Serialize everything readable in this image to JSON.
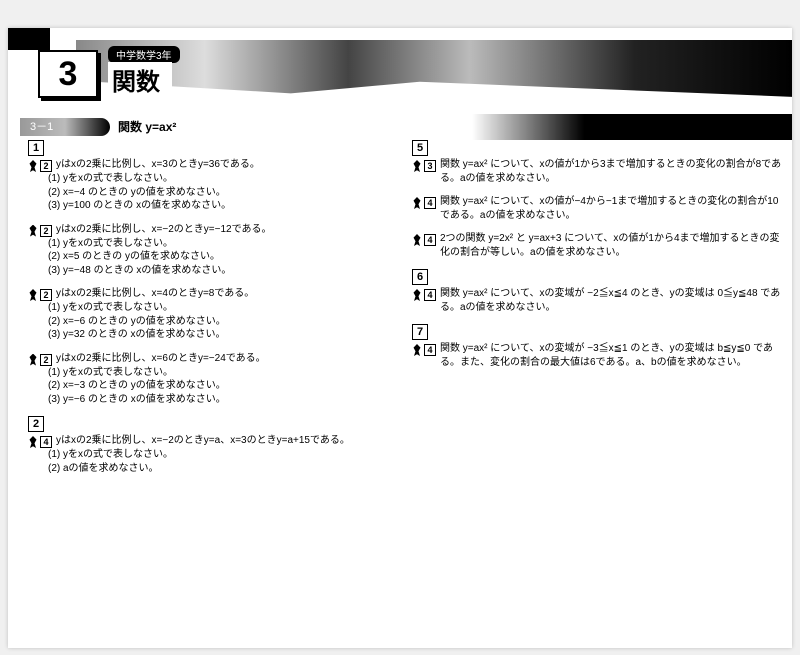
{
  "chapter": {
    "number": "3",
    "breadcrumb": "中学数学3年",
    "title": "関数"
  },
  "section": {
    "tab": "3－1",
    "label": "関数 y=ax²"
  },
  "left_column": [
    {
      "num": "1",
      "difficulty": "2",
      "prompt": "yはxの2乗に比例し、x=3のときy=36である。",
      "sub": [
        "(1) yをxの式で表しなさい。",
        "(2) x=−4 のときの yの値を求めなさい。",
        "(3) y=100 のときの xの値を求めなさい。"
      ]
    },
    {
      "num": "",
      "difficulty": "2",
      "prompt": "yはxの2乗に比例し、x=−2のときy=−12である。",
      "sub": [
        "(1) yをxの式で表しなさい。",
        "(2) x=5 のときの yの値を求めなさい。",
        "(3) y=−48 のときの xの値を求めなさい。"
      ]
    },
    {
      "num": "",
      "difficulty": "2",
      "prompt": "yはxの2乗に比例し、x=4のときy=8である。",
      "sub": [
        "(1) yをxの式で表しなさい。",
        "(2) x=−6 のときの yの値を求めなさい。",
        "(3) y=32 のときの xの値を求めなさい。"
      ]
    },
    {
      "num": "",
      "difficulty": "2",
      "prompt": "yはxの2乗に比例し、x=6のときy=−24である。",
      "sub": [
        "(1) yをxの式で表しなさい。",
        "(2) x=−3 のときの yの値を求めなさい。",
        "(3) y=−6 のときの xの値を求めなさい。"
      ]
    },
    {
      "num": "2",
      "difficulty": "4",
      "prompt": "yはxの2乗に比例し、x=−2のときy=a、x=3のときy=a+15である。",
      "sub": [
        "(1) yをxの式で表しなさい。",
        "(2) aの値を求めなさい。"
      ]
    }
  ],
  "right_column": [
    {
      "num": "5",
      "difficulty": "3",
      "prompt": "関数 y=ax² について、xの値が1から3まで増加するときの変化の割合が8である。aの値を求めなさい。",
      "sub": []
    },
    {
      "num": "",
      "difficulty": "4",
      "prompt": "関数 y=ax² について、xの値が−4から−1まで増加するときの変化の割合が10である。aの値を求めなさい。",
      "sub": []
    },
    {
      "num": "",
      "difficulty": "4",
      "prompt": "2つの関数 y=2x² と y=ax+3 について、xの値が1から4まで増加するときの変化の割合が等しい。aの値を求めなさい。",
      "sub": []
    },
    {
      "num": "6",
      "difficulty": "4",
      "prompt": "関数 y=ax² について、xの変域が −2≦x≦4 のとき、yの変域は 0≦y≦48 である。aの値を求めなさい。",
      "sub": []
    },
    {
      "num": "7",
      "difficulty": "4",
      "prompt": "関数 y=ax² について、xの変域が −3≦x≦1 のとき、yの変域は b≦y≦0 である。また、変化の割合の最大値は6である。a、bの値を求めなさい。",
      "sub": []
    }
  ]
}
